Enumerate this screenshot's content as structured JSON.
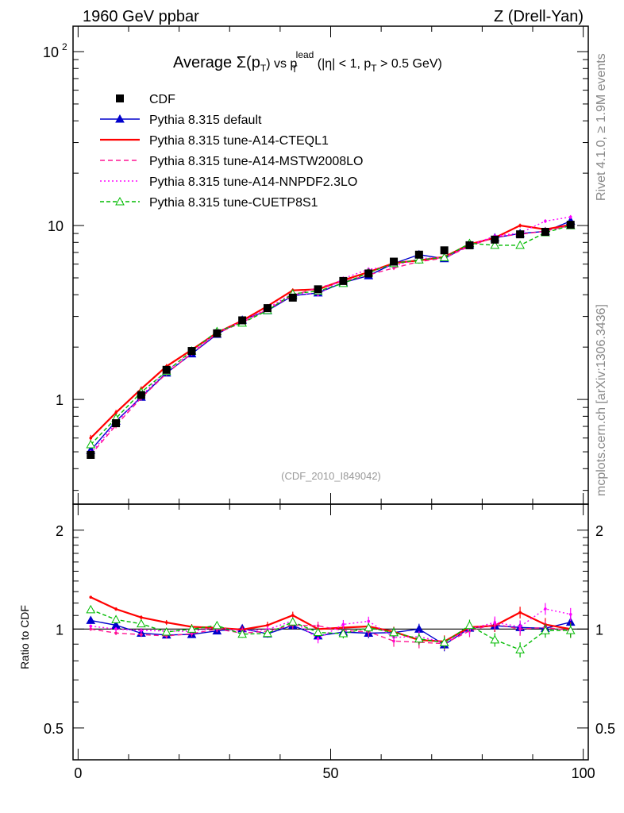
{
  "header": {
    "left": "1960 GeV ppbar",
    "right": "Z (Drell-Yan)"
  },
  "side_text": {
    "rivet": "Rivet 4.1.0, ≥ 1.9M events",
    "site": "mcplots.cern.ch [arXiv:1306.3436]"
  },
  "watermark": "(CDF_2010_I849042)",
  "title": {
    "pre": "Average ",
    "sigma": "Σ(p",
    "sub1": "T",
    "mid": ") vs p",
    "sup": "lead",
    "sub2": "T",
    "post": " (|η| < 1, p",
    "sub3": "T",
    "end": " > 0.5 GeV)"
  },
  "chart_data": {
    "type": "line",
    "log_y": true,
    "x": [
      2.5,
      7.5,
      12.5,
      17.5,
      22.5,
      27.5,
      32.5,
      37.5,
      42.5,
      47.5,
      52.5,
      57.5,
      62.5,
      67.5,
      72.5,
      77.5,
      82.5,
      87.5,
      92.5,
      97.5
    ],
    "xlim": [
      -1,
      101
    ],
    "ylim": [
      0.25,
      140
    ],
    "ratio_ylim": [
      0.4,
      2.4
    ],
    "xticks": [
      0,
      50,
      100
    ],
    "yticks_main": [
      {
        "value": 1,
        "label": "1"
      },
      {
        "value": 10,
        "label": "10"
      },
      {
        "value": 100,
        "label": "10",
        "exp": "2"
      }
    ],
    "yticks_ratio": [
      {
        "value": 0.5,
        "label": "0.5"
      },
      {
        "value": 1,
        "label": "1"
      },
      {
        "value": 2,
        "label": "2"
      }
    ],
    "ratio_ylabel": "Ratio to CDF",
    "data": {
      "name": "CDF",
      "color": "#000000",
      "values": [
        0.48,
        0.73,
        1.06,
        1.48,
        1.9,
        2.4,
        2.85,
        3.35,
        3.85,
        4.3,
        4.8,
        5.3,
        6.2,
        6.8,
        7.2,
        7.7,
        8.3,
        8.9,
        9.2,
        10.1
      ],
      "errors": [
        0.02,
        0.03,
        0.04,
        0.05,
        0.06,
        0.07,
        0.08,
        0.09,
        0.1,
        0.12,
        0.13,
        0.15,
        0.18,
        0.2,
        0.22,
        0.25,
        0.3,
        0.35,
        0.4,
        0.45
      ]
    },
    "series": [
      {
        "name": "Pythia 8.315 default",
        "color": "#0000cc",
        "dash": "",
        "marker": "triangle",
        "values": [
          0.51,
          0.75,
          1.03,
          1.42,
          1.83,
          2.37,
          2.86,
          3.24,
          3.95,
          4.1,
          4.7,
          5.15,
          6.05,
          6.8,
          6.45,
          7.75,
          8.5,
          9.0,
          9.25,
          10.6
        ]
      },
      {
        "name": "Pythia 8.315 tune-A14-CTEQL1",
        "color": "#ff0000",
        "dash": "",
        "marker": "none",
        "values": [
          0.6,
          0.84,
          1.15,
          1.55,
          1.93,
          2.42,
          2.84,
          3.44,
          4.24,
          4.3,
          4.85,
          5.4,
          6.08,
          6.3,
          6.6,
          7.8,
          8.5,
          10.0,
          9.5,
          10.1
        ]
      },
      {
        "name": "Pythia 8.315 tune-A14-MSTW2008LO",
        "color": "#ff1493",
        "dash": "6,4",
        "marker": "none",
        "values": [
          0.48,
          0.71,
          1.02,
          1.41,
          1.84,
          2.4,
          2.77,
          3.3,
          3.96,
          4.4,
          4.75,
          5.2,
          5.7,
          6.2,
          6.5,
          7.6,
          8.6,
          8.9,
          9.3,
          10.0
        ]
      },
      {
        "name": "Pythia 8.315 tune-A14-NNPDF2.3LO",
        "color": "#ff00ff",
        "dash": "2,3",
        "marker": "none",
        "values": [
          0.49,
          0.73,
          1.05,
          1.46,
          1.87,
          2.43,
          2.81,
          3.34,
          4.08,
          4.02,
          4.96,
          5.6,
          5.85,
          6.45,
          6.55,
          7.7,
          8.7,
          9.05,
          10.6,
          11.2
        ]
      },
      {
        "name": "Pythia 8.315 tune-CUETP8S1",
        "color": "#00bb00",
        "dash": "5,3",
        "marker": "open-triangle",
        "values": [
          0.55,
          0.78,
          1.1,
          1.45,
          1.9,
          2.46,
          2.75,
          3.25,
          4.05,
          4.2,
          4.65,
          5.35,
          6.05,
          6.35,
          6.55,
          7.9,
          7.7,
          7.7,
          9.1,
          10.0
        ]
      }
    ]
  }
}
